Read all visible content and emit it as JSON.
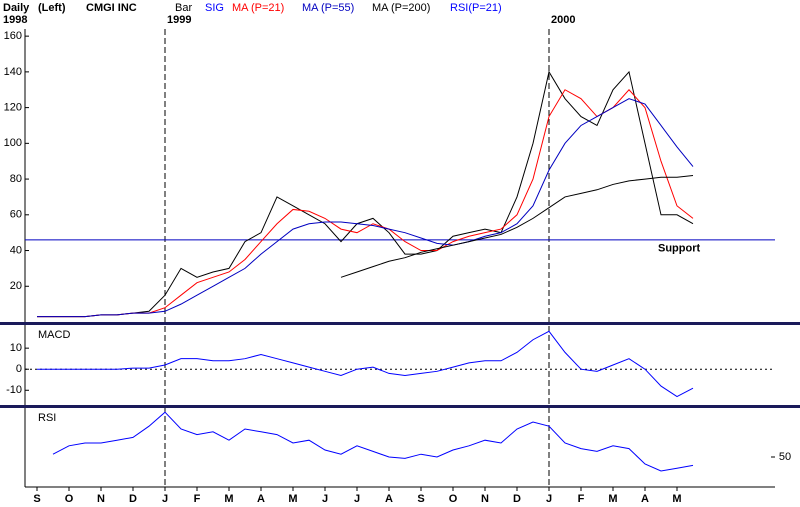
{
  "chart_data": [
    {
      "type": "line",
      "header": [
        "Daily",
        "(Left)",
        "CMGI INC"
      ],
      "year_labels": [
        "1998",
        "1999",
        "2000"
      ],
      "categories": [
        "S",
        null,
        "O",
        null,
        "N",
        null,
        "D",
        null,
        "J",
        null,
        "F",
        null,
        "M",
        null,
        "A",
        null,
        "M",
        null,
        "J",
        null,
        "J",
        null,
        "A",
        null,
        "S",
        null,
        "O",
        null,
        "N",
        null,
        "D",
        null,
        "J",
        null,
        "F",
        null,
        "M",
        null,
        "A",
        null,
        "M",
        null
      ],
      "series": [
        {
          "name": "Bar",
          "color": "#000000",
          "values": [
            3,
            3,
            3,
            3,
            4,
            4,
            5,
            6,
            15,
            30,
            25,
            28,
            30,
            45,
            50,
            70,
            65,
            60,
            55,
            45,
            55,
            58,
            50,
            38,
            38,
            40,
            48,
            50,
            52,
            50,
            70,
            100,
            140,
            125,
            115,
            110,
            130,
            140,
            100,
            60,
            60,
            55
          ]
        },
        {
          "name": "MA (P=21)",
          "color": "#ff0000",
          "values": [
            3,
            3,
            3,
            3,
            4,
            4,
            5,
            5,
            8,
            15,
            22,
            25,
            28,
            35,
            45,
            55,
            63,
            62,
            58,
            52,
            50,
            55,
            52,
            45,
            40,
            40,
            45,
            48,
            50,
            52,
            60,
            80,
            115,
            130,
            125,
            115,
            120,
            130,
            120,
            90,
            65,
            58
          ]
        },
        {
          "name": "MA (P=55)",
          "color": "#0000c0",
          "values": [
            3,
            3,
            3,
            3,
            4,
            4,
            5,
            5,
            6,
            10,
            15,
            20,
            25,
            30,
            38,
            45,
            52,
            55,
            56,
            56,
            55,
            54,
            52,
            50,
            47,
            44,
            43,
            45,
            48,
            50,
            55,
            65,
            85,
            100,
            110,
            115,
            120,
            125,
            122,
            110,
            98,
            87
          ]
        },
        {
          "name": "MA (P=200)",
          "color": "#000000",
          "values": [
            null,
            null,
            null,
            null,
            null,
            null,
            null,
            null,
            null,
            null,
            null,
            null,
            null,
            null,
            null,
            null,
            null,
            null,
            null,
            25,
            28,
            31,
            34,
            36,
            39,
            41,
            43,
            45,
            47,
            49,
            53,
            58,
            64,
            70,
            72,
            74,
            77,
            79,
            80,
            81,
            81,
            82
          ]
        }
      ],
      "support": {
        "label": "Support",
        "value": 46
      },
      "ylim": [
        0,
        164
      ],
      "yticks": [
        20,
        40,
        60,
        80,
        100,
        120,
        140,
        160
      ]
    },
    {
      "type": "line",
      "title": "MACD",
      "series": [
        {
          "name": "SIG",
          "color": "#0000ff",
          "values": [
            0,
            0,
            0,
            0,
            0,
            0,
            0.5,
            0.5,
            2,
            5,
            5,
            4,
            4,
            5,
            7,
            5,
            3,
            1,
            -1,
            -3,
            0,
            1,
            -2,
            -3,
            -2,
            -1,
            1,
            3,
            4,
            4,
            8,
            14,
            18,
            8,
            0,
            -1,
            2,
            5,
            0,
            -8,
            -13,
            -9
          ]
        }
      ],
      "ylim": [
        -17,
        21
      ],
      "yticks": [
        -10,
        0,
        10
      ]
    },
    {
      "type": "line",
      "title": "RSI",
      "series": [
        {
          "name": "RSI(P=21)",
          "color": "#0000ff",
          "values": [
            null,
            52,
            58,
            60,
            60,
            62,
            64,
            72,
            82,
            70,
            66,
            68,
            62,
            70,
            68,
            66,
            60,
            62,
            55,
            52,
            58,
            54,
            50,
            49,
            52,
            50,
            55,
            58,
            62,
            60,
            70,
            75,
            72,
            60,
            56,
            54,
            58,
            56,
            45,
            40,
            42,
            44
          ]
        }
      ],
      "ylim": [
        30,
        85
      ],
      "yticks": [
        50
      ]
    }
  ]
}
